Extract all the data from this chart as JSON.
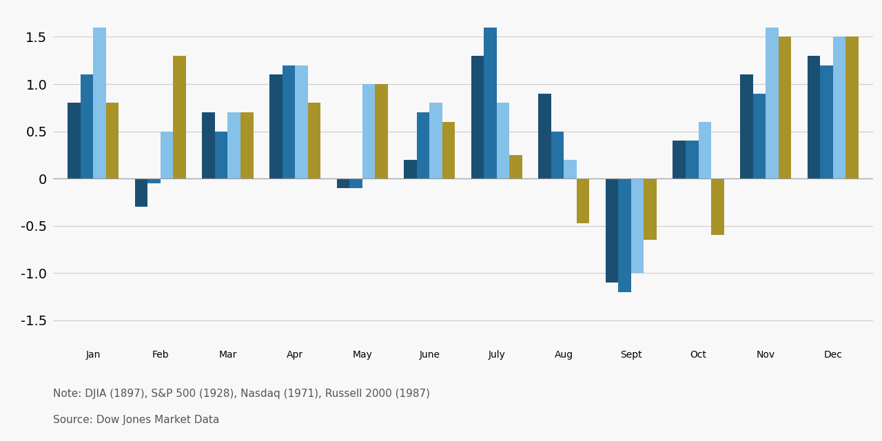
{
  "months": [
    "Jan",
    "Feb",
    "Mar",
    "Apr",
    "May",
    "June",
    "July",
    "Aug",
    "Sept",
    "Oct",
    "Nov",
    "Dec"
  ],
  "series": {
    "DJIA": [
      0.8,
      -0.3,
      0.7,
      1.1,
      -0.1,
      0.2,
      1.3,
      0.9,
      -1.1,
      0.4,
      1.1,
      1.3
    ],
    "SP500": [
      1.1,
      -0.05,
      0.5,
      1.2,
      -0.1,
      0.7,
      1.6,
      0.5,
      -1.2,
      0.4,
      0.9,
      1.2
    ],
    "Nasdaq": [
      1.6,
      0.5,
      0.7,
      1.2,
      1.0,
      0.8,
      0.8,
      0.2,
      -1.0,
      0.6,
      1.6,
      1.5
    ],
    "Russell2000": [
      0.8,
      1.3,
      0.7,
      0.8,
      1.0,
      0.6,
      0.25,
      -0.47,
      -0.65,
      -0.6,
      1.5,
      1.5
    ]
  },
  "colors": {
    "DJIA": "#1b4f72",
    "SP500": "#2471a3",
    "Nasdaq": "#85c1e9",
    "Russell2000": "#a89328"
  },
  "ylim": [
    -1.75,
    1.75
  ],
  "yticks": [
    -1.5,
    -1.0,
    -0.5,
    0.0,
    0.5,
    1.0,
    1.5
  ],
  "note": "Note: DJIA (1897), S&P 500 (1928), Nasdaq (1971), Russell 2000 (1987)",
  "source": "Source: Dow Jones Market Data",
  "bar_width": 0.19,
  "background_color": "#f8f8f8",
  "grid_color": "#cccccc",
  "tick_label_fontsize": 14,
  "note_fontsize": 11
}
